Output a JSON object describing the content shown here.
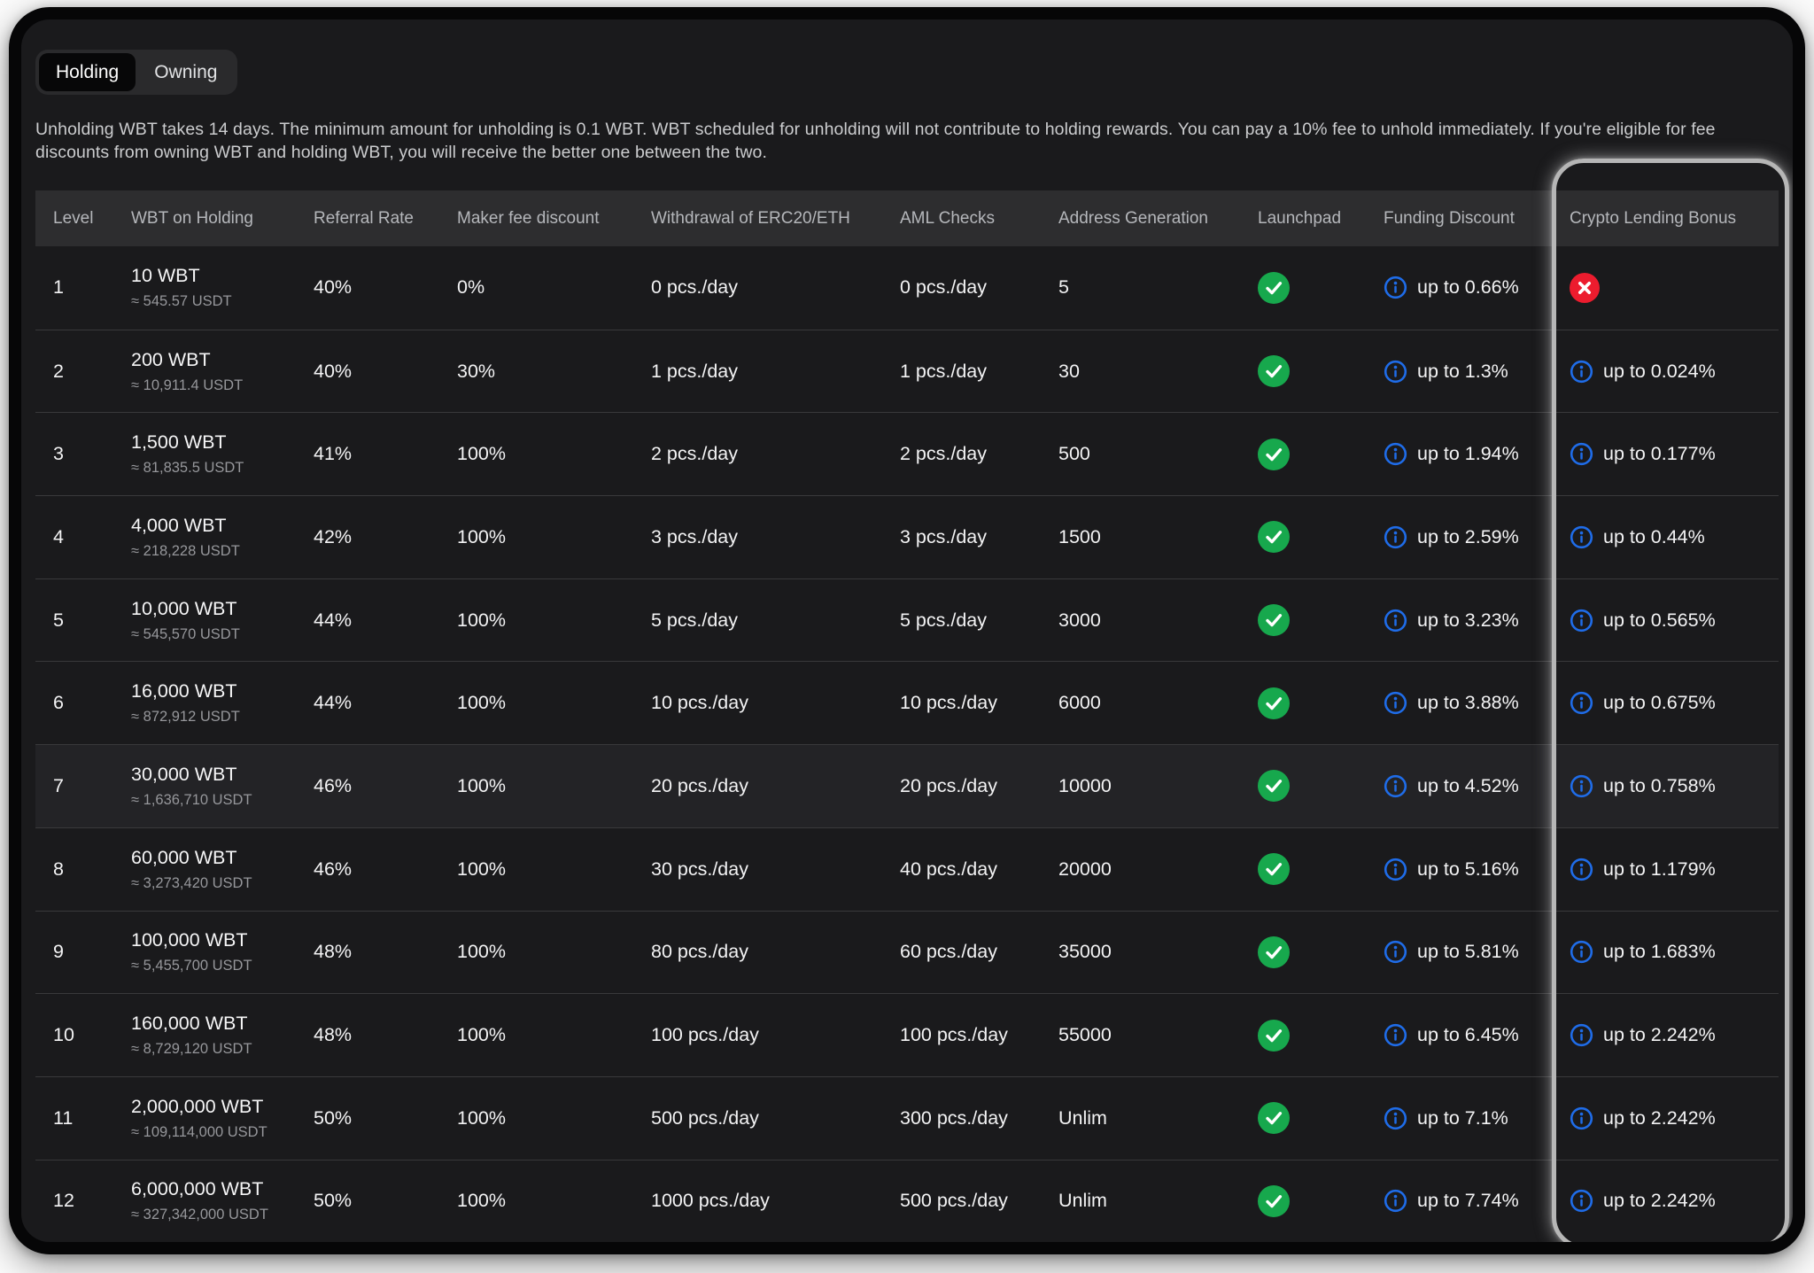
{
  "tabs": [
    {
      "label": "Holding",
      "active": true
    },
    {
      "label": "Owning",
      "active": false
    }
  ],
  "description": "Unholding WBT takes 14 days. The minimum amount for unholding is 0.1 WBT. WBT scheduled for unholding will not contribute to holding rewards. You can pay a 10% fee to unhold immediately. If you're eligible for fee discounts from owning WBT and holding WBT, you will receive the better one between the two.",
  "table": {
    "columns": [
      "Level",
      "WBT on Holding",
      "Referral Rate",
      "Maker fee discount",
      "Withdrawal of ERC20/ETH",
      "AML Checks",
      "Address Generation",
      "Launchpad",
      "Funding Discount",
      "Crypto Lending Bonus"
    ],
    "rows": [
      {
        "level": "1",
        "wbt": "10 WBT",
        "usdt": "≈ 545.57 USDT",
        "referral": "40%",
        "maker": "0%",
        "withdrawal": "0 pcs./day",
        "aml": "0 pcs./day",
        "address": "5",
        "launchpad": "yes",
        "funding": "up to 0.66%",
        "lending": null,
        "highlighted": false
      },
      {
        "level": "2",
        "wbt": "200 WBT",
        "usdt": "≈ 10,911.4 USDT",
        "referral": "40%",
        "maker": "30%",
        "withdrawal": "1 pcs./day",
        "aml": "1 pcs./day",
        "address": "30",
        "launchpad": "yes",
        "funding": "up to 1.3%",
        "lending": "up to 0.024%",
        "highlighted": false
      },
      {
        "level": "3",
        "wbt": "1,500 WBT",
        "usdt": "≈ 81,835.5 USDT",
        "referral": "41%",
        "maker": "100%",
        "withdrawal": "2 pcs./day",
        "aml": "2 pcs./day",
        "address": "500",
        "launchpad": "yes",
        "funding": "up to 1.94%",
        "lending": "up to 0.177%",
        "highlighted": false
      },
      {
        "level": "4",
        "wbt": "4,000 WBT",
        "usdt": "≈ 218,228 USDT",
        "referral": "42%",
        "maker": "100%",
        "withdrawal": "3 pcs./day",
        "aml": "3 pcs./day",
        "address": "1500",
        "launchpad": "yes",
        "funding": "up to 2.59%",
        "lending": "up to 0.44%",
        "highlighted": false
      },
      {
        "level": "5",
        "wbt": "10,000 WBT",
        "usdt": "≈ 545,570 USDT",
        "referral": "44%",
        "maker": "100%",
        "withdrawal": "5 pcs./day",
        "aml": "5 pcs./day",
        "address": "3000",
        "launchpad": "yes",
        "funding": "up to 3.23%",
        "lending": "up to 0.565%",
        "highlighted": false
      },
      {
        "level": "6",
        "wbt": "16,000 WBT",
        "usdt": "≈ 872,912 USDT",
        "referral": "44%",
        "maker": "100%",
        "withdrawal": "10 pcs./day",
        "aml": "10 pcs./day",
        "address": "6000",
        "launchpad": "yes",
        "funding": "up to 3.88%",
        "lending": "up to 0.675%",
        "highlighted": false
      },
      {
        "level": "7",
        "wbt": "30,000 WBT",
        "usdt": "≈ 1,636,710 USDT",
        "referral": "46%",
        "maker": "100%",
        "withdrawal": "20 pcs./day",
        "aml": "20 pcs./day",
        "address": "10000",
        "launchpad": "yes",
        "funding": "up to 4.52%",
        "lending": "up to 0.758%",
        "highlighted": true
      },
      {
        "level": "8",
        "wbt": "60,000 WBT",
        "usdt": "≈ 3,273,420 USDT",
        "referral": "46%",
        "maker": "100%",
        "withdrawal": "30 pcs./day",
        "aml": "40 pcs./day",
        "address": "20000",
        "launchpad": "yes",
        "funding": "up to 5.16%",
        "lending": "up to 1.179%",
        "highlighted": false
      },
      {
        "level": "9",
        "wbt": "100,000 WBT",
        "usdt": "≈ 5,455,700 USDT",
        "referral": "48%",
        "maker": "100%",
        "withdrawal": "80 pcs./day",
        "aml": "60 pcs./day",
        "address": "35000",
        "launchpad": "yes",
        "funding": "up to 5.81%",
        "lending": "up to 1.683%",
        "highlighted": false
      },
      {
        "level": "10",
        "wbt": "160,000 WBT",
        "usdt": "≈ 8,729,120 USDT",
        "referral": "48%",
        "maker": "100%",
        "withdrawal": "100 pcs./day",
        "aml": "100 pcs./day",
        "address": "55000",
        "launchpad": "yes",
        "funding": "up to 6.45%",
        "lending": "up to 2.242%",
        "highlighted": false
      },
      {
        "level": "11",
        "wbt": "2,000,000 WBT",
        "usdt": "≈ 109,114,000 USDT",
        "referral": "50%",
        "maker": "100%",
        "withdrawal": "500 pcs./day",
        "aml": "300 pcs./day",
        "address": "Unlim",
        "launchpad": "yes",
        "funding": "up to 7.1%",
        "lending": "up to 2.242%",
        "highlighted": false
      },
      {
        "level": "12",
        "wbt": "6,000,000 WBT",
        "usdt": "≈ 327,342,000 USDT",
        "referral": "50%",
        "maker": "100%",
        "withdrawal": "1000 pcs./day",
        "aml": "500 pcs./day",
        "address": "Unlim",
        "launchpad": "yes",
        "funding": "up to 7.74%",
        "lending": "up to 2.242%",
        "highlighted": false
      }
    ]
  },
  "icons": {
    "launchpad_enabled": "check-circle",
    "lending_unavailable": "x-circle",
    "tooltip": "info-circle"
  },
  "colors": {
    "success_green": "#17a84d",
    "error_red": "#ec1c2e",
    "accent_blue": "#1f6ce8",
    "highlight_outline": "#b6b6b6"
  }
}
